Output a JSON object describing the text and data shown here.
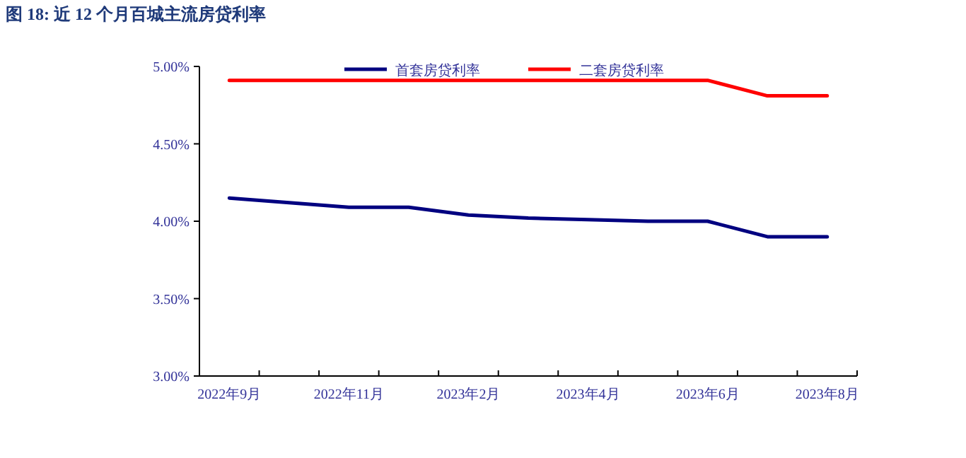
{
  "chart_data": {
    "type": "line",
    "title": "图 18:  近 12 个月百城主流房贷利率",
    "categories": [
      "2022年9月",
      null,
      "2022年11月",
      null,
      "2023年2月",
      null,
      "2023年4月",
      null,
      "2023年6月",
      null,
      "2023年8月"
    ],
    "series": [
      {
        "name": "首套房贷利率",
        "color": "#000080",
        "values": [
          4.15,
          4.12,
          4.09,
          4.09,
          4.04,
          4.02,
          4.01,
          4.0,
          4.0,
          3.9,
          3.9
        ]
      },
      {
        "name": "二套房贷利率",
        "color": "#ff0000",
        "values": [
          4.91,
          4.91,
          4.91,
          4.91,
          4.91,
          4.91,
          4.91,
          4.91,
          4.91,
          4.81,
          4.81
        ]
      }
    ],
    "ylim": [
      3.0,
      5.0
    ],
    "yticks": [
      {
        "value": 3.0,
        "label": "3.00%"
      },
      {
        "value": 3.5,
        "label": "3.50%"
      },
      {
        "value": 4.0,
        "label": "4.00%"
      },
      {
        "value": 4.5,
        "label": "4.50%"
      },
      {
        "value": 5.0,
        "label": "5.00%"
      }
    ],
    "legend": "top"
  }
}
